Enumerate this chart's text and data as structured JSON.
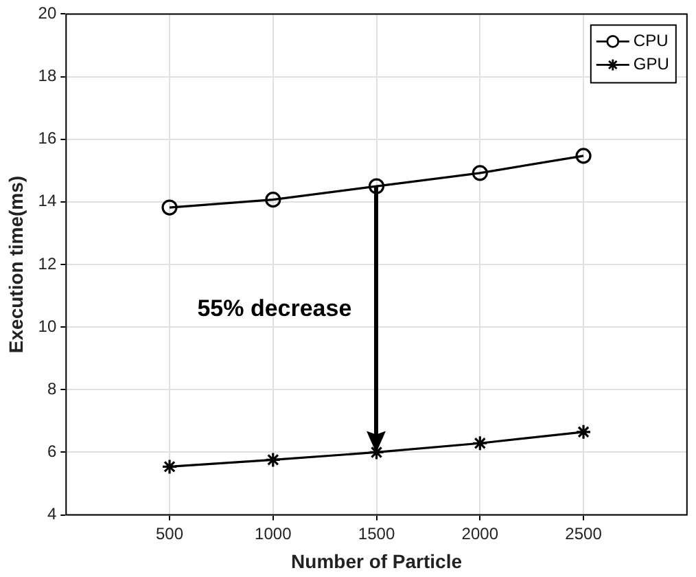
{
  "chart_data": {
    "type": "line",
    "xlabel": "Number of Particle",
    "ylabel": "Execution time(ms)",
    "x": [
      500,
      1000,
      1500,
      2000,
      2500
    ],
    "series": [
      {
        "name": "CPU",
        "color": "#000000",
        "marker": "circle",
        "values": [
          13.82,
          14.07,
          14.5,
          14.92,
          15.47
        ]
      },
      {
        "name": "GPU",
        "color": "#000000",
        "marker": "cross",
        "values": [
          5.54,
          5.76,
          6.0,
          6.29,
          6.65
        ]
      }
    ],
    "xlim": [
      0,
      3000
    ],
    "xticks": [
      500,
      1000,
      1500,
      2000,
      2500
    ],
    "ylim": [
      4,
      20
    ],
    "yticks": [
      4,
      6,
      8,
      10,
      12,
      14,
      16,
      18,
      20
    ],
    "grid": true,
    "legend": "top right",
    "line_style": "solid",
    "annotations": [
      "55% decrease"
    ]
  }
}
